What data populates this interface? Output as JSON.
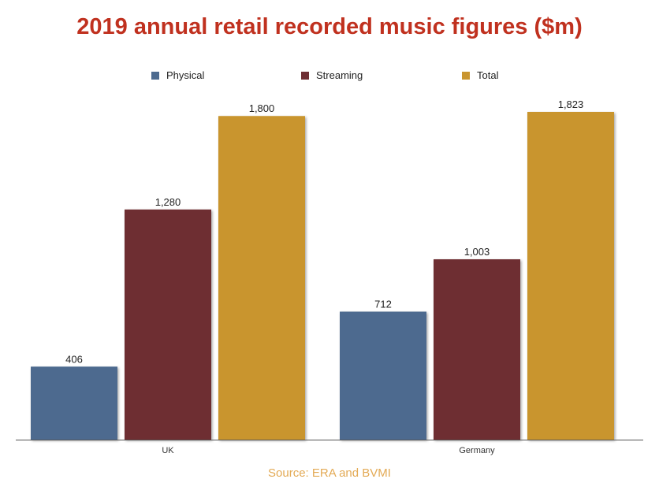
{
  "chart_data": {
    "type": "bar",
    "title": "2019 annual retail recorded music figures ($m)",
    "categories": [
      "UK",
      "Germany"
    ],
    "series": [
      {
        "name": "Physical",
        "values": [
          406,
          712
        ],
        "color": "#4d6a8f"
      },
      {
        "name": "Streaming",
        "values": [
          1280,
          1003
        ],
        "color": "#6e2f33"
      },
      {
        "name": "Total",
        "values": [
          1800,
          1823
        ],
        "color": "#c9952f"
      }
    ],
    "value_labels": [
      [
        "406",
        "712"
      ],
      [
        "1,280",
        "1,003"
      ],
      [
        "1,800",
        "1,823"
      ]
    ],
    "ylim": [
      0,
      1823
    ],
    "grid": false,
    "legend_position": "top",
    "xlabel": "",
    "ylabel": ""
  },
  "colors": {
    "title": "#c0311f",
    "source": "#e3aa55",
    "axis": "#555555"
  },
  "source_text": "Source: ERA and BVMI"
}
